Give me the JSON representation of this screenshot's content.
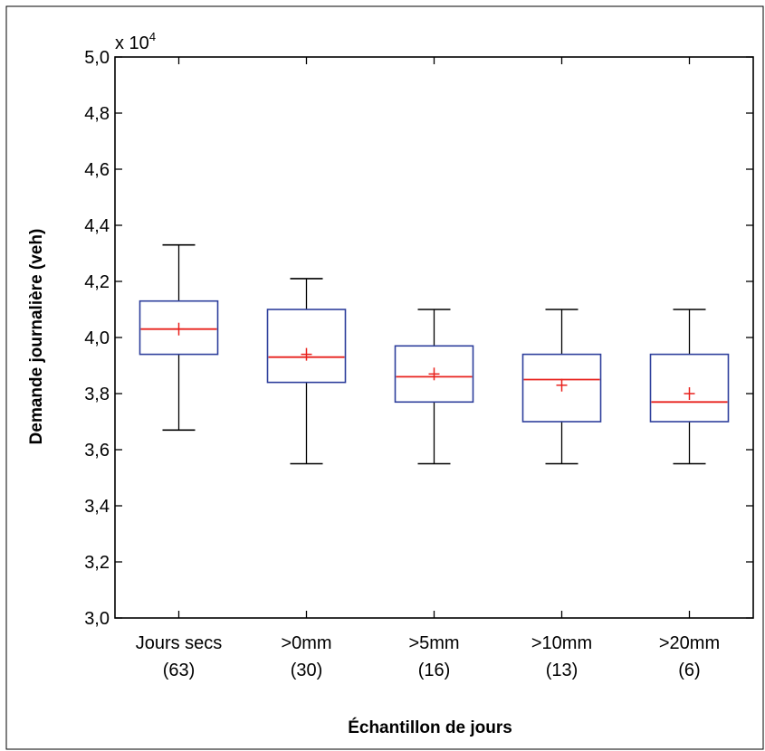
{
  "chart_data": {
    "type": "box",
    "xlabel": "Échantillon de jours",
    "ylabel": "Demande journalière (veh)",
    "y_multiplier_label": "x 10",
    "y_multiplier_exponent": "4",
    "ylim": [
      3.0,
      5.0
    ],
    "yticks": [
      3.0,
      3.2,
      3.4,
      3.6,
      3.8,
      4.0,
      4.2,
      4.4,
      4.6,
      4.8,
      5.0
    ],
    "ytick_labels": [
      "3,0",
      "3,2",
      "3,4",
      "3,6",
      "3,8",
      "4,0",
      "4,2",
      "4,4",
      "4,6",
      "4,8",
      "5,0"
    ],
    "categories": [
      {
        "label": "Jours secs",
        "count": "(63)",
        "whisker_low": 3.67,
        "q1": 3.94,
        "median": 4.03,
        "q3": 4.13,
        "whisker_high": 4.33,
        "mean": 4.03
      },
      {
        "label": ">0mm",
        "count": "(30)",
        "whisker_low": 3.55,
        "q1": 3.84,
        "median": 3.93,
        "q3": 4.1,
        "whisker_high": 4.21,
        "mean": 3.94
      },
      {
        "label": ">5mm",
        "count": "(16)",
        "whisker_low": 3.55,
        "q1": 3.77,
        "median": 3.86,
        "q3": 3.97,
        "whisker_high": 4.1,
        "mean": 3.87
      },
      {
        "label": ">10mm",
        "count": "(13)",
        "whisker_low": 3.55,
        "q1": 3.7,
        "median": 3.85,
        "q3": 3.94,
        "whisker_high": 4.1,
        "mean": 3.83
      },
      {
        "label": ">20mm",
        "count": "(6)",
        "whisker_low": 3.55,
        "q1": 3.7,
        "median": 3.77,
        "q3": 3.94,
        "whisker_high": 4.1,
        "mean": 3.8
      }
    ],
    "colors": {
      "box": "#2e3f9c",
      "median": "#e8211c",
      "mean_marker": "#e8211c",
      "whisker": "#000000",
      "frame": "#000000"
    }
  }
}
